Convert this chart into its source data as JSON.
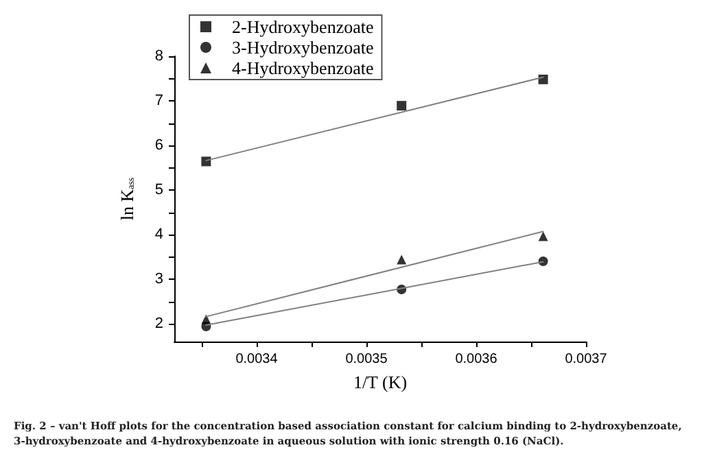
{
  "chart_data": {
    "type": "scatter",
    "xlabel": "1/T (K)",
    "ylabel": "ln K$_{ass}$",
    "xlim": [
      0.003325,
      0.0037
    ],
    "ylim": [
      1.6,
      8
    ],
    "xticks": [
      {
        "value": 0.00335,
        "label": null
      },
      0.0034,
      {
        "value": 0.00345,
        "label": null
      },
      0.0035,
      {
        "value": 0.00355,
        "label": null
      },
      0.0036,
      {
        "value": 0.00365,
        "label": null
      },
      0.0037
    ],
    "yticks": [
      2,
      {
        "value": 2.5,
        "label": null
      },
      3,
      {
        "value": 3.5,
        "label": null
      },
      4,
      {
        "value": 4.5,
        "label": null
      },
      5,
      {
        "value": 5.5,
        "label": null
      },
      6,
      {
        "value": 6.5,
        "label": null
      },
      7,
      {
        "value": 7.5,
        "label": null
      },
      8
    ],
    "grid": false,
    "legend": "top left",
    "series": [
      {
        "name": "2-Hydroxybenzoate",
        "color": "#000000",
        "marker": "square",
        "x": [
          0.003354,
          0.003532,
          0.003661
        ],
        "values": [
          5.64,
          6.89,
          7.48
        ]
      },
      {
        "name": "3-Hydroxybenzoate",
        "color": "#000000",
        "marker": "circle",
        "x": [
          0.003354,
          0.003532,
          0.003661
        ],
        "values": [
          1.94,
          2.77,
          3.4
        ]
      },
      {
        "name": "4-Hydroxybenzoate",
        "color": "#000000",
        "marker": "triangle",
        "x": [
          0.003354,
          0.003532,
          0.003661
        ],
        "values": [
          2.1,
          3.44,
          3.96
        ]
      },
      {
        "type": "line",
        "color": "#808080",
        "marker": "none",
        "x": [
          0.003354,
          0.003661
        ],
        "values": [
          5.66,
          7.53
        ]
      },
      {
        "type": "line",
        "color": "#808080",
        "marker": "none",
        "x": [
          0.003354,
          0.003661
        ],
        "values": [
          1.97,
          3.39
        ]
      },
      {
        "type": "line",
        "color": "#808080",
        "marker": "none",
        "x": [
          0.003354,
          0.003661
        ],
        "values": [
          2.16,
          4.07
        ]
      }
    ],
    "annotations": [
      "Fig. 2 – van't Hoff plots for the concentration based association constant for calcium binding to 2-hydroxybenzoate, 3-hydroxybenzoate and 4-hydroxybenzoate in aqueous solution with ionic strength 0.16 (NaCl)."
    ]
  }
}
